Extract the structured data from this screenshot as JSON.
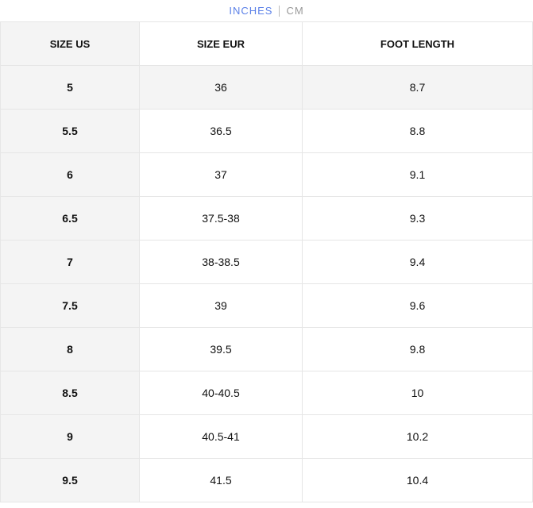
{
  "units": {
    "inches": "INCHES",
    "cm": "CM",
    "active": "INCHES",
    "active_color": "#5b80e8"
  },
  "table": {
    "headers": [
      "SIZE US",
      "SIZE EUR",
      "FOOT LENGTH"
    ],
    "rows": [
      [
        "5",
        "36",
        "8.7"
      ],
      [
        "5.5",
        "36.5",
        "8.8"
      ],
      [
        "6",
        "37",
        "9.1"
      ],
      [
        "6.5",
        "37.5-38",
        "9.3"
      ],
      [
        "7",
        "38-38.5",
        "9.4"
      ],
      [
        "7.5",
        "39",
        "9.6"
      ],
      [
        "8",
        "39.5",
        "9.8"
      ],
      [
        "8.5",
        "40-40.5",
        "10"
      ],
      [
        "9",
        "40.5-41",
        "10.2"
      ],
      [
        "9.5",
        "41.5",
        "10.4"
      ]
    ]
  }
}
